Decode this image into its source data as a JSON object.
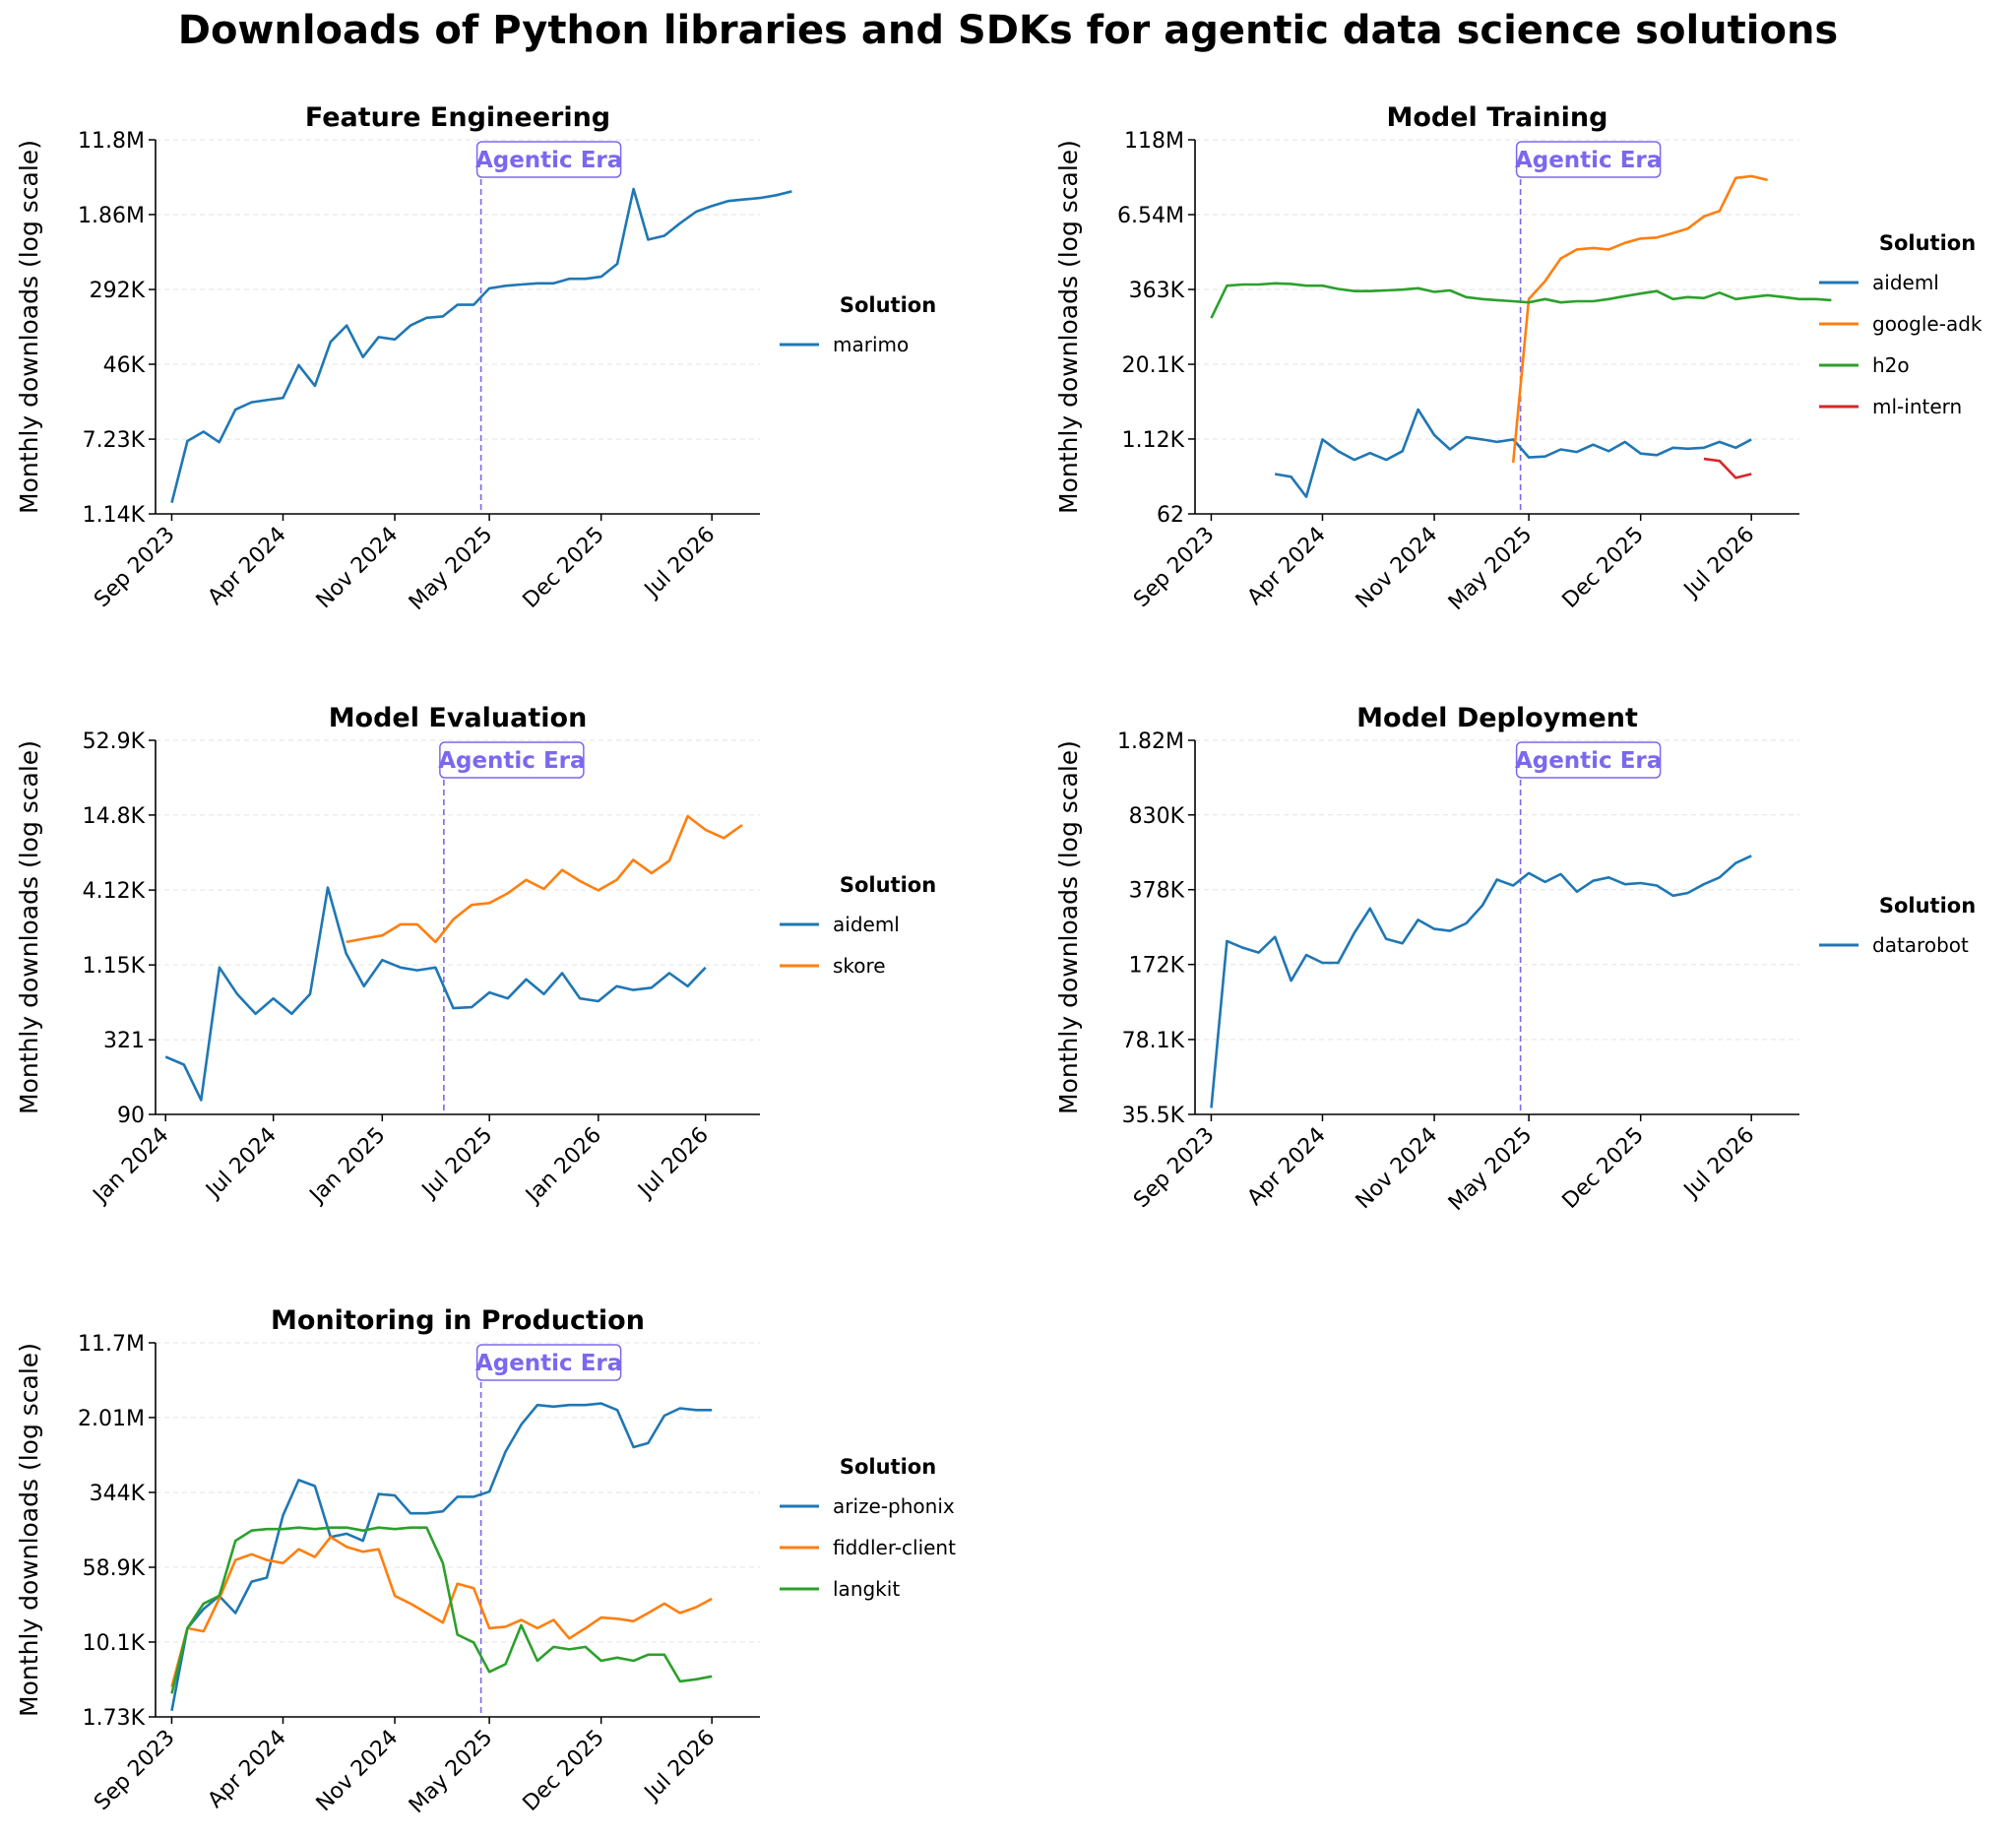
{
  "figure": {
    "title": "Downloads of Python libraries and SDKs for agentic data science solutions"
  },
  "chart_data": [
    {
      "id": "fe",
      "type": "line",
      "title": "Feature Engineering",
      "ylabel": "Monthly downloads (log scale)",
      "yscale": "log",
      "yticks": [
        1140,
        7230,
        46000,
        292000,
        1860000,
        11800000
      ],
      "ytick_labels": [
        "1.14K",
        "7.23K",
        "46K",
        "292K",
        "1.86M",
        "11.8M"
      ],
      "grid": "y-dashed",
      "xlim": [
        "2023-08-01",
        "2026-10-01"
      ],
      "xticks": [
        "2023-09-01",
        "2024-04-01",
        "2024-11-01",
        "2025-05-01",
        "2025-12-01",
        "2026-07-01"
      ],
      "xtick_labels": [
        "Sep 2023",
        "Apr 2024",
        "Nov 2024",
        "May 2025",
        "Dec 2025",
        "Jul 2026"
      ],
      "annotation": {
        "label": "Agentic Era",
        "x": "2025-04-15"
      },
      "legend": {
        "title": "Solution",
        "placement": "right"
      },
      "series": [
        {
          "name": "marimo",
          "color": "#1f77b4",
          "x_start": "2023-09",
          "values": [
            1500,
            6900,
            8700,
            6700,
            15000,
            18000,
            19000,
            20000,
            45000,
            27000,
            80000,
            120000,
            55000,
            90000,
            85000,
            120000,
            145000,
            150000,
            200000,
            200000,
            300000,
            320000,
            330000,
            340000,
            340000,
            380000,
            380000,
            400000,
            550000,
            3500000,
            1000000,
            1100000,
            1500000,
            2000000,
            2300000,
            2600000,
            2700000,
            2800000,
            3000000,
            3300000
          ]
        }
      ]
    },
    {
      "id": "mt",
      "type": "line",
      "title": "Model Training",
      "ylabel": "Monthly downloads (log scale)",
      "yscale": "log",
      "yticks": [
        62,
        1120,
        20100,
        363000,
        6540000,
        118000000
      ],
      "ytick_labels": [
        "62",
        "1.12K",
        "20.1K",
        "363K",
        "6.54M",
        "118M"
      ],
      "grid": "y-dashed",
      "xlim": [
        "2023-08-01",
        "2026-10-01"
      ],
      "xticks": [
        "2023-09-01",
        "2024-04-01",
        "2024-11-01",
        "2025-05-01",
        "2025-12-01",
        "2026-07-01"
      ],
      "xtick_labels": [
        "Sep 2023",
        "Apr 2024",
        "Nov 2024",
        "May 2025",
        "Dec 2025",
        "Jul 2026"
      ],
      "annotation": {
        "label": "Agentic Era",
        "x": "2025-04-15"
      },
      "legend": {
        "title": "Solution",
        "placement": "right"
      },
      "series": [
        {
          "name": "aideml",
          "color": "#1f77b4",
          "x_start": "2024-01",
          "values": [
            290,
            260,
            120,
            1100,
            700,
            500,
            650,
            500,
            700,
            3500,
            1300,
            750,
            1200,
            1100,
            1000,
            1100,
            550,
            570,
            750,
            680,
            900,
            700,
            1000,
            640,
            600,
            800,
            770,
            800,
            1000,
            800,
            1100
          ]
        },
        {
          "name": "google-adk",
          "color": "#ff7f0e",
          "x_start": "2025-04",
          "values": [
            450,
            250000,
            500000,
            1200000,
            1700000,
            1800000,
            1700000,
            2200000,
            2600000,
            2700000,
            3200000,
            3800000,
            6100000,
            7500000,
            27000000,
            29000000,
            25000000
          ]
        },
        {
          "name": "h2o",
          "color": "#2ca02c",
          "x_start": "2023-09",
          "values": [
            120000,
            420000,
            440000,
            440000,
            460000,
            450000,
            420000,
            420000,
            370000,
            340000,
            340000,
            350000,
            360000,
            380000,
            330000,
            350000,
            270000,
            250000,
            240000,
            230000,
            220000,
            250000,
            220000,
            230000,
            230000,
            250000,
            280000,
            310000,
            340000,
            250000,
            270000,
            260000,
            320000,
            250000,
            270000,
            290000,
            270000,
            250000,
            250000,
            240000
          ]
        },
        {
          "name": "ml-intern",
          "color": "#d62728",
          "x_start": "2026-04",
          "values": [
            520,
            480,
            250,
            290
          ]
        }
      ]
    },
    {
      "id": "me",
      "type": "line",
      "title": "Model Evaluation",
      "ylabel": "Monthly downloads (log scale)",
      "yscale": "log",
      "yticks": [
        90,
        321,
        1150,
        4120,
        14800,
        52900
      ],
      "ytick_labels": [
        "90",
        "321",
        "1.15K",
        "4.12K",
        "14.8K",
        "52.9K"
      ],
      "grid": "y-dashed",
      "xlim": [
        "2023-12-15",
        "2026-10-01"
      ],
      "xticks": [
        "2024-01-01",
        "2024-07-01",
        "2025-01-01",
        "2025-07-01",
        "2026-01-01",
        "2026-07-01"
      ],
      "xtick_labels": [
        "Jan 2024",
        "Jul 2024",
        "Jan 2025",
        "Jul 2025",
        "Jan 2026",
        "Jul 2026"
      ],
      "annotation": {
        "label": "Agentic Era",
        "x": "2025-04-15"
      },
      "legend": {
        "title": "Solution",
        "placement": "right"
      },
      "series": [
        {
          "name": "aideml",
          "color": "#1f77b4",
          "x_start": "2024-01",
          "values": [
            240,
            210,
            115,
            1100,
            700,
            500,
            650,
            500,
            700,
            4300,
            1400,
            800,
            1250,
            1100,
            1050,
            1100,
            550,
            560,
            720,
            650,
            900,
            700,
            1000,
            650,
            620,
            800,
            750,
            780,
            1000,
            800,
            1100
          ]
        },
        {
          "name": "skore",
          "color": "#ff7f0e",
          "x_start": "2024-11",
          "values": [
            1700,
            1800,
            1900,
            2300,
            2300,
            1700,
            2500,
            3200,
            3300,
            3900,
            4900,
            4200,
            5800,
            4800,
            4100,
            4900,
            6900,
            5500,
            6800,
            14500,
            11500,
            10000,
            12500
          ]
        }
      ]
    },
    {
      "id": "md",
      "type": "line",
      "title": "Model Deployment",
      "ylabel": "Monthly downloads (log scale)",
      "yscale": "log",
      "yticks": [
        35500,
        78100,
        172000,
        378000,
        830000,
        1820000
      ],
      "ytick_labels": [
        "35.5K",
        "78.1K",
        "172K",
        "378K",
        "830K",
        "1.82M"
      ],
      "grid": "y-dashed",
      "xlim": [
        "2023-08-01",
        "2026-10-01"
      ],
      "xticks": [
        "2023-09-01",
        "2024-04-01",
        "2024-11-01",
        "2025-05-01",
        "2025-12-01",
        "2026-07-01"
      ],
      "xtick_labels": [
        "Sep 2023",
        "Apr 2024",
        "Nov 2024",
        "May 2025",
        "Dec 2025",
        "Jul 2026"
      ],
      "annotation": {
        "label": "Agentic Era",
        "x": "2025-04-15"
      },
      "legend": {
        "title": "Solution",
        "placement": "right"
      },
      "series": [
        {
          "name": "datarobot",
          "color": "#1f77b4",
          "x_start": "2023-09",
          "values": [
            38000,
            220000,
            205000,
            195000,
            230000,
            145000,
            190000,
            175000,
            175000,
            240000,
            310000,
            225000,
            215000,
            275000,
            250000,
            245000,
            265000,
            320000,
            420000,
            395000,
            450000,
            410000,
            445000,
            370000,
            415000,
            430000,
            400000,
            405000,
            395000,
            355000,
            365000,
            400000,
            430000,
            500000,
            540000
          ]
        }
      ]
    },
    {
      "id": "mp",
      "type": "line",
      "title": "Monitoring in Production",
      "ylabel": "Monthly downloads (log scale)",
      "yscale": "log",
      "yticks": [
        1730,
        10100,
        58900,
        344000,
        2010000,
        11700000
      ],
      "ytick_labels": [
        "1.73K",
        "10.1K",
        "58.9K",
        "344K",
        "2.01M",
        "11.7M"
      ],
      "grid": "y-dashed",
      "xlim": [
        "2023-08-01",
        "2026-10-01"
      ],
      "xticks": [
        "2023-09-01",
        "2024-04-01",
        "2024-11-01",
        "2025-05-01",
        "2025-12-01",
        "2026-07-01"
      ],
      "xtick_labels": [
        "Sep 2023",
        "Apr 2024",
        "Nov 2024",
        "May 2025",
        "Dec 2025",
        "Jul 2026"
      ],
      "annotation": {
        "label": "Agentic Era",
        "x": "2025-04-15"
      },
      "legend": {
        "title": "Solution",
        "placement": "right"
      },
      "series": [
        {
          "name": "arize-phonix",
          "color": "#1f77b4",
          "x_start": "2023-09",
          "values": [
            2000,
            14000,
            22000,
            30000,
            20000,
            42000,
            46000,
            200000,
            460000,
            400000,
            120000,
            130000,
            110000,
            330000,
            320000,
            210000,
            210000,
            220000,
            310000,
            310000,
            350000,
            900000,
            1700000,
            2700000,
            2600000,
            2700000,
            2700000,
            2800000,
            2400000,
            1000000,
            1100000,
            2100000,
            2500000,
            2400000,
            2400000
          ]
        },
        {
          "name": "fiddler-client",
          "color": "#ff7f0e",
          "x_start": "2023-09",
          "values": [
            3500,
            14000,
            13000,
            28000,
            70000,
            80000,
            70000,
            65000,
            90000,
            75000,
            120000,
            95000,
            85000,
            90000,
            30000,
            25000,
            20000,
            16000,
            40000,
            36000,
            14000,
            14500,
            17000,
            14000,
            17000,
            11000,
            14000,
            18000,
            17500,
            16500,
            20000,
            25000,
            20000,
            23000,
            28000
          ]
        },
        {
          "name": "langkit",
          "color": "#2ca02c",
          "x_start": "2023-09",
          "values": [
            3000,
            14000,
            25000,
            30000,
            110000,
            140000,
            145000,
            145000,
            150000,
            145000,
            150000,
            150000,
            140000,
            150000,
            145000,
            150000,
            150000,
            65000,
            12000,
            10000,
            5000,
            6000,
            15000,
            6500,
            9000,
            8500,
            9000,
            6500,
            7000,
            6500,
            7500,
            7500,
            4000,
            4200,
            4500
          ]
        }
      ]
    }
  ]
}
